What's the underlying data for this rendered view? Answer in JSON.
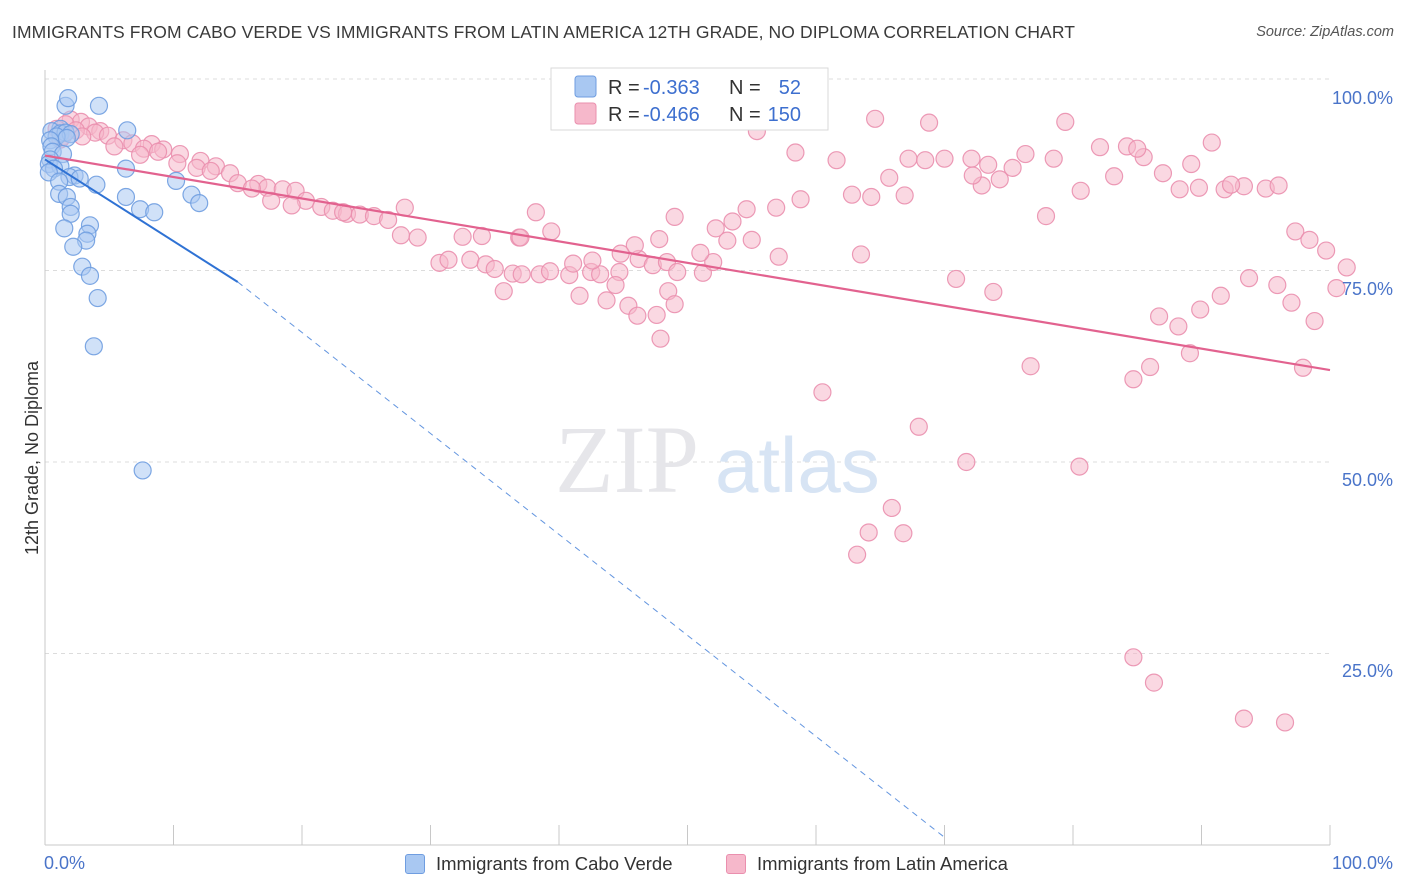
{
  "title": "IMMIGRANTS FROM CABO VERDE VS IMMIGRANTS FROM LATIN AMERICA 12TH GRADE, NO DIPLOMA CORRELATION CHART",
  "source": "Source: ZipAtlas.com",
  "watermark": {
    "zip": "ZIP",
    "atlas": "atlas"
  },
  "colors": {
    "blue_fill": "#a9c8f2",
    "blue_stroke": "#6f9de0",
    "blue_line": "#2f72d4",
    "pink_fill": "#f6b8cb",
    "pink_stroke": "#ea8fae",
    "pink_line": "#e2628f",
    "axis_label": "#4a74c9",
    "grid": "#dcdcdc"
  },
  "legend": {
    "rows": [
      {
        "r_label": "R =",
        "r_value": "-0.363",
        "n_label": "N =",
        "n_value": "52",
        "color": "blue"
      },
      {
        "r_label": "R =",
        "r_value": "-0.466",
        "n_label": "N =",
        "n_value": "150",
        "color": "pink"
      }
    ]
  },
  "bottom_legend": [
    "Immigrants from Cabo Verde",
    "Immigrants from Latin America"
  ],
  "chart_data": {
    "type": "scatter",
    "title": "IMMIGRANTS FROM CABO VERDE VS IMMIGRANTS FROM LATIN AMERICA 12TH GRADE, NO DIPLOMA CORRELATION CHART",
    "xlabel": "",
    "ylabel": "12th Grade, No Diploma",
    "xlim": [
      0,
      100
    ],
    "ylim": [
      0,
      100
    ],
    "x_tick_labels": [
      "0.0%",
      "100.0%"
    ],
    "y_ticks": [
      25,
      50,
      75,
      100
    ],
    "y_tick_labels": [
      "25.0%",
      "50.0%",
      "75.0%",
      "100.0%"
    ],
    "grid": true,
    "legend_position": "top-center",
    "series": [
      {
        "name": "Immigrants from Cabo Verde",
        "color": "blue",
        "r": -0.363,
        "n": 52,
        "trend_solid": [
          [
            0,
            89.5
          ],
          [
            15,
            73.5
          ]
        ],
        "trend_dashed": [
          [
            15,
            73.5
          ],
          [
            70,
            1
          ]
        ],
        "points": [
          [
            1.6,
            96.5
          ],
          [
            1.8,
            97.5
          ],
          [
            4.2,
            96.5
          ],
          [
            6.4,
            93.3
          ],
          [
            1.2,
            93.5
          ],
          [
            0.5,
            93.2
          ],
          [
            1.2,
            92.9
          ],
          [
            1.6,
            93.0
          ],
          [
            2.0,
            92.8
          ],
          [
            0.9,
            92.5
          ],
          [
            1.7,
            92.3
          ],
          [
            0.4,
            92.0
          ],
          [
            0.5,
            91.2
          ],
          [
            0.6,
            90.5
          ],
          [
            1.4,
            90.2
          ],
          [
            0.4,
            89.5
          ],
          [
            0.3,
            88.9
          ],
          [
            1.2,
            88.6
          ],
          [
            0.7,
            88.3
          ],
          [
            0.3,
            87.8
          ],
          [
            2.3,
            87.4
          ],
          [
            1.9,
            87.2
          ],
          [
            2.7,
            87.0
          ],
          [
            1.1,
            86.6
          ],
          [
            4.0,
            86.2
          ],
          [
            10.2,
            86.7
          ],
          [
            6.3,
            88.3
          ],
          [
            1.1,
            85.0
          ],
          [
            1.7,
            84.6
          ],
          [
            6.3,
            84.6
          ],
          [
            11.4,
            84.9
          ],
          [
            12.0,
            83.8
          ],
          [
            2.0,
            83.3
          ],
          [
            7.4,
            83.0
          ],
          [
            8.5,
            82.6
          ],
          [
            2.0,
            82.4
          ],
          [
            3.5,
            80.9
          ],
          [
            1.5,
            80.5
          ],
          [
            3.3,
            79.8
          ],
          [
            3.2,
            78.9
          ],
          [
            2.2,
            78.1
          ],
          [
            2.9,
            75.5
          ],
          [
            3.5,
            74.3
          ],
          [
            4.1,
            71.4
          ],
          [
            3.8,
            65.1
          ],
          [
            7.6,
            48.9
          ]
        ]
      },
      {
        "name": "Immigrants from Latin America",
        "color": "pink",
        "r": -0.466,
        "n": 150,
        "trend_solid": [
          [
            0,
            90
          ],
          [
            100,
            62
          ]
        ],
        "points": [
          [
            2.0,
            94.7
          ],
          [
            2.8,
            94.4
          ],
          [
            1.6,
            94.1
          ],
          [
            3.4,
            93.8
          ],
          [
            0.9,
            93.5
          ],
          [
            2.4,
            93.3
          ],
          [
            4.3,
            93.2
          ],
          [
            3.9,
            93.0
          ],
          [
            4.9,
            92.6
          ],
          [
            1.4,
            92.5
          ],
          [
            2.9,
            92.5
          ],
          [
            1.2,
            92.1
          ],
          [
            6.1,
            92.0
          ],
          [
            6.8,
            91.6
          ],
          [
            8.3,
            91.5
          ],
          [
            5.4,
            91.2
          ],
          [
            7.7,
            90.9
          ],
          [
            9.2,
            90.8
          ],
          [
            8.8,
            90.5
          ],
          [
            10.5,
            90.2
          ],
          [
            7.4,
            90.1
          ],
          [
            12.1,
            89.3
          ],
          [
            10.3,
            89.0
          ],
          [
            11.8,
            88.4
          ],
          [
            13.3,
            88.6
          ],
          [
            12.9,
            88.0
          ],
          [
            14.4,
            87.7
          ],
          [
            15.0,
            86.4
          ],
          [
            16.6,
            86.3
          ],
          [
            17.3,
            85.8
          ],
          [
            18.5,
            85.6
          ],
          [
            19.5,
            85.4
          ],
          [
            16.1,
            85.7
          ],
          [
            20.3,
            84.1
          ],
          [
            17.6,
            84.1
          ],
          [
            19.2,
            83.5
          ],
          [
            21.5,
            83.3
          ],
          [
            22.4,
            82.8
          ],
          [
            23.5,
            82.4
          ],
          [
            24.5,
            82.3
          ],
          [
            25.6,
            82.1
          ],
          [
            26.7,
            81.6
          ],
          [
            23.2,
            82.6
          ],
          [
            28.0,
            83.2
          ],
          [
            27.7,
            79.6
          ],
          [
            29.0,
            79.3
          ],
          [
            32.5,
            79.4
          ],
          [
            34.0,
            79.5
          ],
          [
            36.9,
            79.3
          ],
          [
            30.7,
            76.0
          ],
          [
            31.4,
            76.4
          ],
          [
            33.1,
            76.4
          ],
          [
            34.3,
            75.8
          ],
          [
            35.0,
            75.2
          ],
          [
            36.4,
            74.6
          ],
          [
            37.1,
            74.5
          ],
          [
            38.5,
            74.5
          ],
          [
            39.3,
            74.9
          ],
          [
            40.8,
            74.4
          ],
          [
            42.5,
            74.8
          ],
          [
            43.2,
            74.5
          ],
          [
            44.7,
            74.8
          ],
          [
            46.2,
            76.5
          ],
          [
            47.3,
            75.7
          ],
          [
            48.4,
            76.1
          ],
          [
            49.2,
            74.8
          ],
          [
            51.2,
            74.7
          ],
          [
            52.0,
            76.1
          ],
          [
            35.7,
            72.3
          ],
          [
            41.6,
            71.7
          ],
          [
            43.7,
            71.1
          ],
          [
            44.4,
            73.1
          ],
          [
            45.4,
            70.4
          ],
          [
            46.1,
            69.1
          ],
          [
            47.6,
            69.2
          ],
          [
            48.5,
            72.3
          ],
          [
            49.0,
            70.6
          ],
          [
            47.9,
            66.1
          ],
          [
            55.4,
            93.2
          ],
          [
            58.4,
            90.4
          ],
          [
            61.6,
            89.4
          ],
          [
            64.6,
            94.8
          ],
          [
            67.2,
            89.6
          ],
          [
            68.5,
            89.4
          ],
          [
            70.0,
            89.6
          ],
          [
            72.1,
            89.6
          ],
          [
            73.4,
            88.8
          ],
          [
            75.3,
            88.4
          ],
          [
            76.3,
            90.2
          ],
          [
            78.5,
            89.6
          ],
          [
            79.4,
            94.4
          ],
          [
            82.1,
            91.1
          ],
          [
            84.2,
            91.2
          ],
          [
            85.5,
            89.8
          ],
          [
            87.0,
            87.7
          ],
          [
            88.3,
            85.6
          ],
          [
            89.8,
            85.8
          ],
          [
            91.8,
            85.6
          ],
          [
            93.3,
            86.0
          ],
          [
            95.0,
            85.7
          ],
          [
            72.9,
            86.1
          ],
          [
            65.7,
            87.1
          ],
          [
            66.9,
            84.8
          ],
          [
            64.3,
            84.6
          ],
          [
            62.8,
            84.9
          ],
          [
            58.8,
            84.3
          ],
          [
            56.9,
            83.2
          ],
          [
            54.6,
            83.0
          ],
          [
            53.5,
            81.4
          ],
          [
            52.2,
            80.5
          ],
          [
            49.0,
            82.0
          ],
          [
            47.8,
            79.1
          ],
          [
            45.9,
            78.3
          ],
          [
            44.8,
            77.2
          ],
          [
            42.6,
            76.3
          ],
          [
            41.1,
            75.9
          ],
          [
            37.0,
            79.3
          ],
          [
            38.2,
            82.6
          ],
          [
            39.4,
            80.1
          ],
          [
            51.0,
            77.3
          ],
          [
            53.1,
            78.9
          ],
          [
            55.0,
            79.0
          ],
          [
            57.1,
            76.8
          ],
          [
            68.8,
            94.3
          ],
          [
            72.2,
            87.4
          ],
          [
            74.3,
            86.9
          ],
          [
            77.9,
            82.1
          ],
          [
            80.6,
            85.4
          ],
          [
            83.2,
            87.3
          ],
          [
            85.0,
            90.9
          ],
          [
            89.2,
            88.9
          ],
          [
            90.8,
            91.7
          ],
          [
            92.3,
            86.2
          ],
          [
            96.0,
            86.1
          ],
          [
            97.3,
            80.1
          ],
          [
            98.4,
            79.0
          ],
          [
            99.7,
            77.6
          ],
          [
            100.5,
            72.7
          ],
          [
            101.3,
            75.4
          ],
          [
            63.5,
            77.1
          ],
          [
            70.9,
            73.9
          ],
          [
            73.8,
            72.2
          ],
          [
            76.7,
            62.5
          ],
          [
            86.7,
            69.0
          ],
          [
            88.2,
            67.7
          ],
          [
            89.1,
            64.2
          ],
          [
            89.9,
            69.9
          ],
          [
            91.5,
            71.7
          ],
          [
            93.7,
            74.0
          ],
          [
            95.9,
            73.1
          ],
          [
            97.0,
            70.8
          ],
          [
            98.8,
            68.4
          ],
          [
            86.0,
            62.4
          ],
          [
            84.7,
            60.8
          ],
          [
            60.5,
            59.1
          ],
          [
            68.0,
            54.6
          ],
          [
            71.7,
            50.0
          ],
          [
            80.5,
            49.4
          ],
          [
            65.9,
            44.0
          ],
          [
            64.1,
            40.8
          ],
          [
            66.8,
            40.7
          ],
          [
            63.2,
            37.9
          ],
          [
            84.7,
            24.5
          ],
          [
            86.3,
            21.2
          ],
          [
            93.3,
            16.5
          ],
          [
            96.5,
            16.0
          ],
          [
            97.9,
            62.3
          ]
        ]
      }
    ]
  }
}
